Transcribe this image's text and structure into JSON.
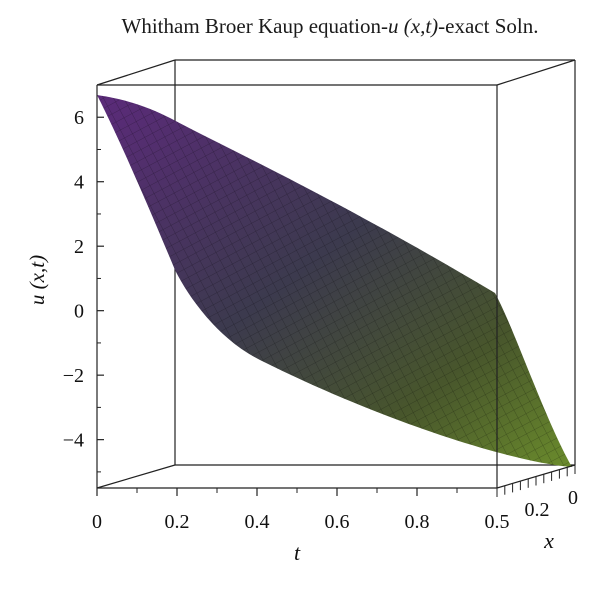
{
  "chart_data": {
    "type": "surface3d",
    "title_prefix": "Whitham Broer Kaup equation-",
    "title_var": "u",
    "title_args": "(x,t)",
    "title_suffix": "-exact Soln.",
    "xlabel": "t",
    "ylabel": "u (x,t)",
    "zlabel": "x",
    "t_range": [
      0,
      1
    ],
    "x_range": [
      0,
      0.5
    ],
    "u_range": [
      -5.5,
      7
    ],
    "t_ticks": [
      0,
      0.2,
      0.4,
      0.6,
      0.8
    ],
    "t_tick_labels": [
      "0",
      "0.2",
      "0.4",
      "0.6",
      "0.8"
    ],
    "x_ticks": [
      0.5,
      0.2,
      0
    ],
    "x_tick_labels": [
      "0.5",
      "0.2",
      "0"
    ],
    "u_ticks": [
      6,
      4,
      2,
      0,
      -2,
      -4
    ],
    "u_tick_labels": [
      "6",
      "4",
      "2",
      "0",
      "−2",
      "−4"
    ],
    "surface_edges": {
      "at_t0_x0": 6.6,
      "at_t0_x05": 1.3,
      "at_t1_x0": -4.9,
      "at_t1_x05": 0.5
    },
    "colormap": [
      "#5b2a7a",
      "#3a3550",
      "#4d5a2a",
      "#6a8a2e"
    ]
  }
}
